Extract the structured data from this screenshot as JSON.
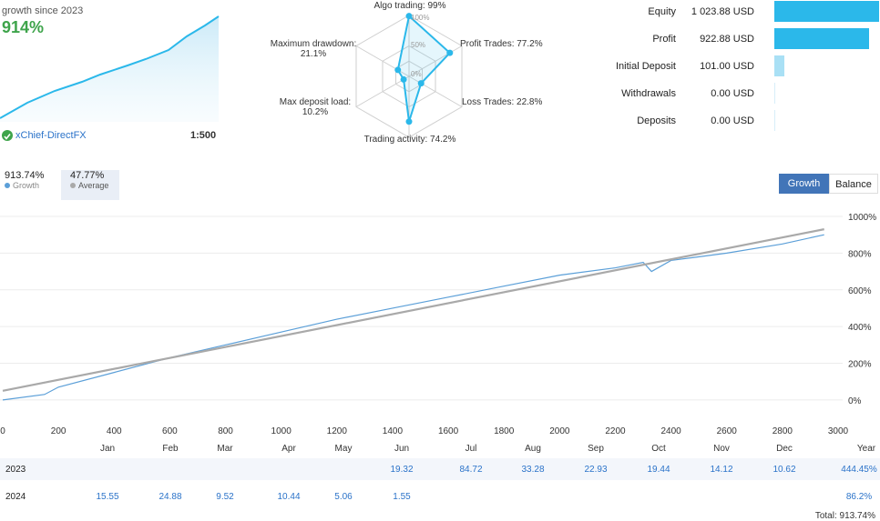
{
  "growth_panel": {
    "caption": "growth since 2023",
    "value": "914%",
    "account": "xChief-DirectFX",
    "leverage": "1:500"
  },
  "radar": {
    "labels": {
      "algo": "Algo trading: 99%",
      "profit": "Profit Trades: 77.2%",
      "loss": "Loss Trades: 22.8%",
      "activity": "Trading activity: 74.2%",
      "deposit_load_1": "Max deposit load:",
      "deposit_load_2": "10.2%",
      "drawdown_1": "Maximum drawdown:",
      "drawdown_2": "21.1%"
    },
    "rings": [
      "100%",
      "50%",
      "0%"
    ],
    "values": {
      "algo": 99,
      "profit": 77.2,
      "loss": 22.8,
      "activity": 74.2,
      "deposit_load": 10.2,
      "drawdown": 21.1
    }
  },
  "stats": [
    {
      "label": "Equity",
      "value": "1 023.88 USD",
      "amount": 1023.88
    },
    {
      "label": "Profit",
      "value": "922.88 USD",
      "amount": 922.88
    },
    {
      "label": "Initial Deposit",
      "value": "101.00 USD",
      "amount": 101.0
    },
    {
      "label": "Withdrawals",
      "value": "0.00 USD",
      "amount": 0
    },
    {
      "label": "Deposits",
      "value": "0.00 USD",
      "amount": 0
    }
  ],
  "legend": {
    "growth_value": "913.74%",
    "growth_label": "Growth",
    "average_value": "47.77%",
    "average_label": "Average"
  },
  "toggle": {
    "growth": "Growth",
    "balance": "Balance",
    "active": "growth"
  },
  "colors": {
    "accent": "#2bb8ea",
    "growth_green": "#3ea44b",
    "tab_blue": "#4275b8",
    "average_gray": "#a9a9a9"
  },
  "chart_data": {
    "type": "line",
    "x_ticks": [
      "0",
      "200",
      "400",
      "600",
      "800",
      "1000",
      "1200",
      "1400",
      "1600",
      "1800",
      "2000",
      "2200",
      "2400",
      "2600",
      "2800",
      "3000"
    ],
    "y_ticks": [
      "1000%",
      "800%",
      "600%",
      "400%",
      "200%",
      "0%"
    ],
    "xlim": [
      0,
      3000
    ],
    "ylim": [
      -50,
      1000
    ],
    "series": [
      {
        "name": "Growth",
        "x": [
          0,
          150,
          200,
          400,
          600,
          800,
          1000,
          1200,
          1400,
          1600,
          1800,
          2000,
          2200,
          2300,
          2330,
          2400,
          2600,
          2800,
          2950
        ],
        "y": [
          0,
          30,
          70,
          150,
          230,
          300,
          370,
          440,
          500,
          560,
          620,
          680,
          720,
          750,
          700,
          760,
          800,
          850,
          900
        ]
      },
      {
        "name": "Average",
        "x": [
          0,
          2950
        ],
        "y": [
          50,
          930
        ]
      }
    ]
  },
  "months": [
    "Jan",
    "Feb",
    "Mar",
    "Apr",
    "May",
    "Jun",
    "Jul",
    "Aug",
    "Sep",
    "Oct",
    "Nov",
    "Dec",
    "Year"
  ],
  "table": [
    {
      "year": "2023",
      "cells": [
        "",
        "",
        "",
        "",
        "",
        "19.32",
        "84.72",
        "33.28",
        "22.93",
        "19.44",
        "14.12",
        "10.62",
        "444.45%"
      ]
    },
    {
      "year": "2024",
      "cells": [
        "15.55",
        "24.88",
        "9.52",
        "10.44",
        "5.06",
        "1.55",
        "",
        "",
        "",
        "",
        "",
        "",
        "86.2%"
      ]
    }
  ],
  "total": "Total: 913.74%"
}
